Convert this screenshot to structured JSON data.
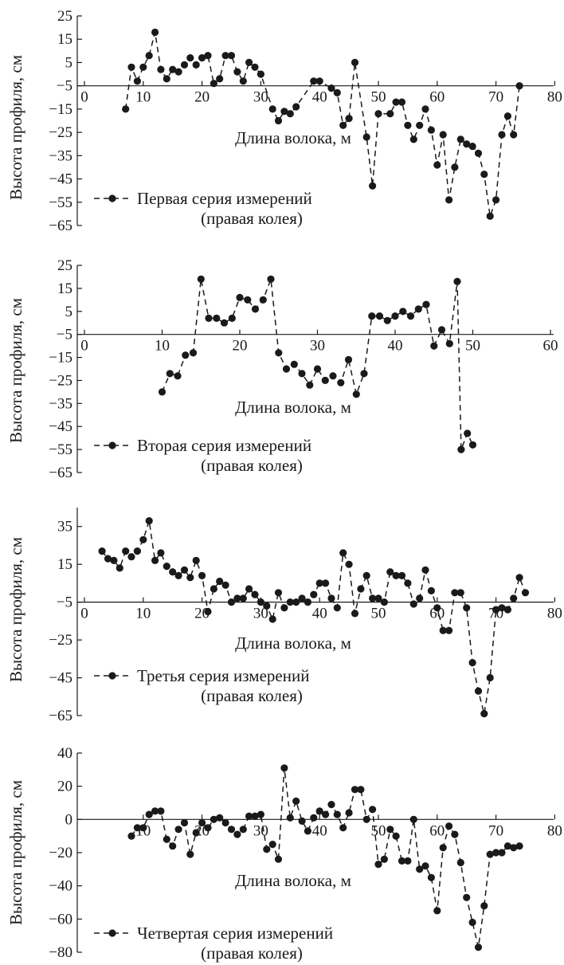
{
  "chart_data": [
    {
      "type": "line",
      "ylabel": "Высота профиля, см",
      "xlabel": "Длина волока, м",
      "xlim": [
        0,
        80
      ],
      "ylim": [
        -65,
        25
      ],
      "xticks": [
        0,
        10,
        20,
        30,
        40,
        50,
        60,
        70,
        80
      ],
      "yticks": [
        25,
        15,
        5,
        -5,
        -15,
        -25,
        -35,
        -45,
        -55,
        -65
      ],
      "legend_marker": "– – ● – –",
      "legend": [
        "Первая серия измерений",
        "(правая колея)"
      ],
      "legend_placement": "bottom-left",
      "series": [
        {
          "x": [
            7,
            8,
            9,
            10,
            11,
            12,
            13,
            14,
            15,
            16,
            17,
            18,
            19,
            20,
            21,
            22,
            23,
            24,
            25,
            26,
            27,
            28,
            29,
            30,
            32,
            33,
            34,
            35,
            36,
            39,
            40,
            42,
            43,
            44,
            45,
            46,
            48,
            49,
            50,
            52,
            53,
            54,
            55,
            56,
            57,
            58,
            59,
            60,
            61,
            62,
            63,
            64,
            65,
            66,
            67,
            68,
            69,
            70,
            71,
            72,
            73,
            74
          ],
          "y": [
            -15,
            3,
            -3,
            3,
            8,
            18,
            2,
            -2,
            2,
            1,
            4,
            7,
            4,
            7,
            8,
            -4,
            -2,
            8,
            8,
            1,
            -3,
            5,
            3,
            0,
            -15,
            -20,
            -16,
            -17,
            -14,
            -3,
            -3,
            -6,
            -8,
            -22,
            -19,
            5,
            -27,
            -48,
            -17,
            -17,
            -12,
            -12,
            -22,
            -28,
            -22,
            -15,
            -24,
            -39,
            -26,
            -54,
            -40,
            -28,
            -30,
            -31,
            -34,
            -43,
            -61,
            -54,
            -26,
            -18,
            -26,
            -5
          ]
        }
      ]
    },
    {
      "type": "line",
      "ylabel": "Высота профиля, см",
      "xlabel": "Длина волока, м",
      "xlim": [
        0,
        60
      ],
      "ylim": [
        -65,
        25
      ],
      "xticks": [
        0,
        10,
        20,
        30,
        40,
        50,
        60
      ],
      "yticks": [
        25,
        15,
        5,
        -5,
        -15,
        -25,
        -35,
        -45,
        -55,
        -65
      ],
      "legend_marker": "– – ● – –",
      "legend": [
        "Вторая серия измерений",
        "(правая колея)"
      ],
      "legend_placement": "bottom-left",
      "series": [
        {
          "x": [
            10,
            11,
            12,
            13,
            14,
            15,
            16,
            17,
            18,
            19,
            20,
            21,
            22,
            23,
            24,
            25,
            26,
            27,
            28,
            29,
            30,
            31,
            32,
            33,
            34,
            35,
            36,
            37,
            38,
            39,
            40,
            41,
            42,
            43,
            44,
            45,
            46,
            47,
            48,
            48.5,
            49.3,
            50
          ],
          "y": [
            -30,
            -22,
            -23,
            -14,
            -13,
            19,
            2,
            2,
            0,
            2,
            11,
            10,
            6,
            10,
            19,
            -13,
            -20,
            -18,
            -22,
            -27,
            -20,
            -25,
            -23,
            -26,
            -16,
            -31,
            -22,
            3,
            3,
            1,
            3,
            5,
            3,
            6,
            8,
            -10,
            -3,
            -9,
            18,
            -55,
            -48,
            -53
          ]
        }
      ]
    },
    {
      "type": "line",
      "ylabel": "Высота профиля, см",
      "xlabel": "Длина волока, м",
      "xlim": [
        0,
        80
      ],
      "ylim": [
        -65,
        45
      ],
      "xticks": [
        0,
        10,
        20,
        30,
        40,
        50,
        60,
        70,
        80
      ],
      "yticks": [
        35,
        15,
        -5,
        -25,
        -45,
        -65
      ],
      "legend_marker": "– – ● – –",
      "legend": [
        "Третья серия измерений",
        "(правая колея)"
      ],
      "legend_placement": "bottom-left",
      "series": [
        {
          "x": [
            3,
            4,
            5,
            6,
            7,
            8,
            9,
            10,
            11,
            12,
            13,
            14,
            15,
            16,
            17,
            18,
            19,
            20,
            21,
            22,
            23,
            24,
            25,
            26,
            27,
            28,
            29,
            30,
            31,
            32,
            33,
            34,
            35,
            36,
            37,
            38,
            39,
            40,
            41,
            42,
            43,
            44,
            45,
            46,
            47,
            48,
            49,
            50,
            51,
            52,
            53,
            54,
            55,
            56,
            57,
            58,
            59,
            60,
            61,
            62,
            63,
            64,
            65,
            66,
            67,
            68,
            69,
            70,
            71,
            72,
            73,
            74,
            75
          ],
          "y": [
            22,
            18,
            17,
            13,
            22,
            19,
            22,
            28,
            38,
            17,
            21,
            14,
            11,
            9,
            12,
            8,
            17,
            9,
            -10,
            2,
            6,
            4,
            -5,
            -3,
            -3,
            2,
            -1,
            -5,
            -7,
            -14,
            0,
            -8,
            -5,
            -5,
            -3,
            -5,
            -1,
            5,
            5,
            -3,
            -8,
            21,
            15,
            -11,
            2,
            9,
            -3,
            -3,
            -5,
            11,
            9,
            9,
            5,
            -6,
            -3,
            12,
            1,
            -8,
            -20,
            -20,
            0,
            0,
            -8,
            -37,
            -52,
            -64,
            -45,
            -9,
            -8,
            -9,
            -3,
            8,
            0
          ]
        }
      ]
    },
    {
      "type": "line",
      "ylabel": "Высота профиля, см",
      "xlabel": "Длина волока, м",
      "xlim": [
        0,
        80
      ],
      "ylim": [
        -80,
        40
      ],
      "xticks": [
        10,
        20,
        30,
        40,
        50,
        60,
        70,
        80
      ],
      "yticks": [
        40,
        20,
        0,
        -20,
        -40,
        -60,
        -80
      ],
      "legend_marker": "– – ● – –",
      "legend": [
        "Четвертая серия измерений",
        "(правая колея)"
      ],
      "legend_placement": "bottom-left",
      "series": [
        {
          "x": [
            8,
            9,
            10,
            11,
            12,
            13,
            14,
            15,
            16,
            17,
            18,
            19,
            20,
            21,
            22,
            23,
            24,
            25,
            26,
            27,
            28,
            29,
            30,
            31,
            32,
            33,
            34,
            35,
            36,
            37,
            38,
            39,
            40,
            41,
            42,
            43,
            44,
            45,
            46,
            47,
            48,
            49,
            50,
            51,
            52,
            53,
            54,
            55,
            56,
            57,
            58,
            59,
            60,
            61,
            62,
            63,
            64,
            65,
            66,
            67,
            68,
            69,
            70,
            71,
            72,
            73,
            74
          ],
          "y": [
            -10,
            -5,
            -5,
            3,
            5,
            5,
            -12,
            -16,
            -6,
            -2,
            -21,
            -8,
            -2,
            -5,
            0,
            1,
            -2,
            -6,
            -9,
            -6,
            2,
            2,
            3,
            -18,
            -15,
            -24,
            31,
            1,
            11,
            -1,
            -7,
            1,
            5,
            3,
            9,
            3,
            -5,
            4,
            18,
            18,
            0,
            6,
            -27,
            -24,
            -6,
            -10,
            -25,
            -25,
            0,
            -30,
            -28,
            -35,
            -55,
            -17,
            -4,
            -9,
            -26,
            -47,
            -62,
            -77,
            -52,
            -21,
            -20,
            -20,
            -16,
            -17,
            -16
          ]
        }
      ]
    }
  ]
}
